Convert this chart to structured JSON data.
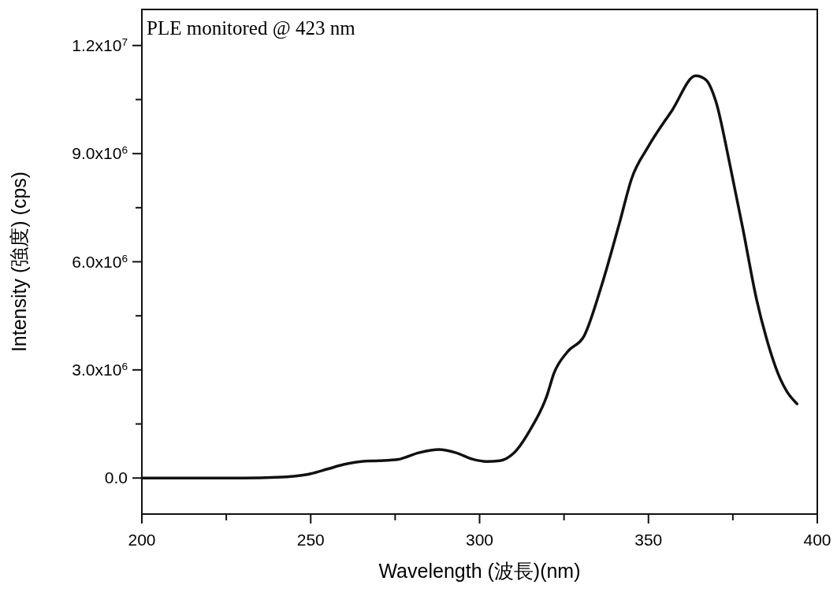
{
  "chart_data": {
    "type": "line",
    "xlabel": "Wavelength (波長)(nm)",
    "ylabel": "Intensity (強度) (cps)",
    "annotations": [
      "PLE monitored @ 423 nm"
    ],
    "xlim": [
      200,
      400
    ],
    "ylim": [
      -1000000,
      13000000
    ],
    "xticks": [
      200,
      {
        "value": 225,
        "label": null
      },
      250,
      {
        "value": 275,
        "label": null
      },
      300,
      {
        "value": 325,
        "label": null
      },
      350,
      {
        "value": 375,
        "label": null
      },
      400
    ],
    "yticks": [
      {
        "value": 0,
        "label": "0.0"
      },
      {
        "value": 1500000,
        "label": null
      },
      {
        "value": 3000000,
        "label": "3.0x10$^{6}$"
      },
      {
        "value": 4500000,
        "label": null
      },
      {
        "value": 6000000,
        "label": "6.0x10$^{6}$"
      },
      {
        "value": 7500000,
        "label": null
      },
      {
        "value": 9000000,
        "label": "9.0x10$^{6}$"
      },
      {
        "value": 10500000,
        "label": null
      },
      {
        "value": 12000000,
        "label": "1.2x10$^{7}$"
      }
    ],
    "grid": false,
    "marker": "none",
    "line_style": "solid",
    "series": [
      {
        "color": "#111111",
        "x": [
          200,
          210,
          220,
          230,
          240,
          245,
          250,
          255,
          260,
          265,
          270,
          276,
          282,
          288,
          293,
          298,
          302,
          306,
          310,
          315,
          320,
          322,
          326,
          331,
          336,
          341.5,
          345,
          350,
          357,
          364,
          367,
          370,
          374,
          378,
          382,
          385,
          389,
          391,
          394
        ],
        "values": [
          0,
          0,
          0,
          0,
          20000,
          50000,
          120000,
          250000,
          380000,
          460000,
          480000,
          520000,
          700000,
          790000,
          700000,
          520000,
          460000,
          480000,
          680000,
          1340000,
          2300000,
          2900000,
          3500000,
          3950000,
          5300000,
          7100000,
          8300000,
          9200000,
          10200000,
          11160000,
          11050000,
          10440000,
          8750000,
          6900000,
          4960000,
          3860000,
          2760000,
          2400000,
          2060000
        ]
      }
    ]
  }
}
